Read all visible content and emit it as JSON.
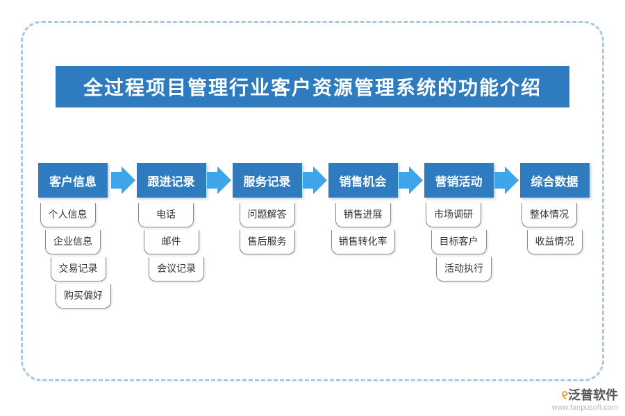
{
  "type": "flowchart",
  "title": "全过程项目管理行业客户资源管理系统的功能介绍",
  "colors": {
    "primary": "#2e7bbf",
    "arrow": "#3da5e8",
    "dashed_border": "#a8c8e8",
    "background": "#ffffff",
    "sub_border": "#888888",
    "sub_text": "#333333",
    "title_text": "#ffffff"
  },
  "typography": {
    "title_fontsize": 28,
    "stage_fontsize": 17,
    "sub_fontsize": 14
  },
  "stages": [
    {
      "label": "客户信息",
      "items": [
        "个人信息",
        "企业信息",
        "交易记录",
        "购买偏好"
      ],
      "stagger": true
    },
    {
      "label": "跟进记录",
      "items": [
        "电话",
        "邮件",
        "会议记录"
      ],
      "stagger": true
    },
    {
      "label": "服务记录",
      "items": [
        "问题解答",
        "售后服务"
      ],
      "stagger": false
    },
    {
      "label": "销售机会",
      "items": [
        "销售进展",
        "销售转化率"
      ],
      "stagger": false
    },
    {
      "label": "营销活动",
      "items": [
        "市场调研",
        "目标客户",
        "活动执行"
      ],
      "stagger": true
    },
    {
      "label": "综合数据",
      "items": [
        "整体情况",
        "收益情况"
      ],
      "stagger": true
    }
  ],
  "watermark": {
    "brand_prefix_glyph": "୧",
    "brand_text": "泛普软件",
    "url": "www.fanpusoft.com"
  }
}
